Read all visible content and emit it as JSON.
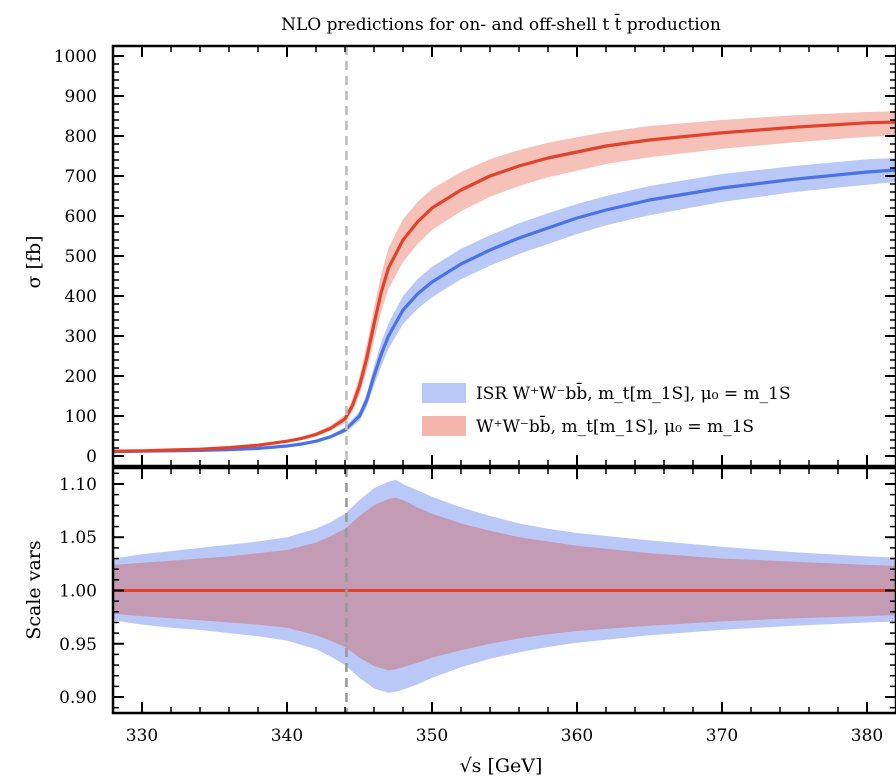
{
  "title": "NLO predictions for on- and off-shell t t̄ production",
  "xlabel": "√s [GeV]",
  "colors": {
    "isr": "#4a72e8",
    "isr_band": "#b9c8f7",
    "ww": "#e2412a",
    "ww_band": "#f4b6ab",
    "overlap": "#c39bb5",
    "threshold": "#bdbdbd"
  },
  "chart_data": [
    {
      "type": "area",
      "panel": "top",
      "ylabel": "σ [fb]",
      "xlim": [
        328,
        382
      ],
      "ylim": [
        -25,
        1025
      ],
      "xticks": [
        330,
        340,
        350,
        360,
        370,
        380
      ],
      "xtick_labels": [
        "330",
        "340",
        "350",
        "360",
        "370",
        "380"
      ],
      "yticks": [
        0,
        100,
        200,
        300,
        400,
        500,
        600,
        700,
        800,
        900,
        1000
      ],
      "ytick_labels": [
        "0",
        "100",
        "200",
        "300",
        "400",
        "500",
        "600",
        "700",
        "800",
        "900",
        "1000"
      ],
      "grid": false,
      "threshold_x": 344.1,
      "legend_position": "lower-right",
      "series": [
        {
          "name": "ISR W⁺W⁻bb̄, m_t[m_1S], μ₀ = m_1S",
          "x": [
            328,
            330,
            332,
            334,
            336,
            338,
            340,
            341,
            342,
            343,
            344,
            345,
            345.5,
            346,
            346.5,
            347,
            348,
            349,
            350,
            352,
            354,
            356,
            358,
            360,
            362,
            365,
            370,
            375,
            380,
            382
          ],
          "y": [
            11,
            12,
            13,
            14,
            16,
            19,
            25,
            30,
            37,
            48,
            65,
            100,
            140,
            200,
            255,
            300,
            365,
            405,
            435,
            480,
            515,
            545,
            570,
            595,
            615,
            640,
            670,
            692,
            710,
            715
          ],
          "band_low": [
            10,
            11,
            12,
            13,
            15,
            18,
            23,
            28,
            34,
            44,
            58,
            88,
            123,
            176,
            225,
            268,
            330,
            368,
            397,
            442,
            476,
            505,
            530,
            555,
            577,
            602,
            635,
            660,
            678,
            685
          ],
          "band_high": [
            12,
            13,
            14,
            15,
            17,
            20,
            27,
            32,
            40,
            52,
            72,
            112,
            157,
            224,
            285,
            332,
            400,
            442,
            473,
            518,
            552,
            582,
            607,
            630,
            650,
            675,
            705,
            725,
            742,
            745
          ]
        },
        {
          "name": "W⁺W⁻bb̄, m_t[m_1S], μ₀ = m_1S",
          "x": [
            328,
            330,
            332,
            334,
            336,
            338,
            340,
            341,
            342,
            343,
            344,
            344.5,
            345,
            345.5,
            346,
            346.5,
            347,
            348,
            349,
            350,
            352,
            354,
            356,
            358,
            360,
            362,
            365,
            370,
            375,
            380,
            382
          ],
          "y": [
            12,
            13,
            15,
            17,
            21,
            27,
            37,
            44,
            54,
            69,
            93,
            125,
            175,
            245,
            330,
            410,
            470,
            540,
            585,
            620,
            665,
            700,
            725,
            745,
            760,
            775,
            790,
            808,
            822,
            833,
            835
          ],
          "band_low": [
            11,
            12,
            14,
            16,
            20,
            25,
            34,
            40,
            49,
            63,
            83,
            110,
            153,
            214,
            290,
            362,
            418,
            485,
            530,
            565,
            612,
            648,
            675,
            697,
            713,
            730,
            747,
            768,
            784,
            798,
            800
          ],
          "band_high": [
            13,
            14,
            16,
            18,
            22,
            29,
            40,
            48,
            59,
            76,
            103,
            142,
            199,
            278,
            370,
            455,
            520,
            592,
            635,
            668,
            710,
            742,
            765,
            783,
            797,
            810,
            825,
            840,
            852,
            860,
            862
          ]
        }
      ]
    },
    {
      "type": "area",
      "panel": "bottom",
      "ylabel": "Scale vars",
      "xlim": [
        328,
        382
      ],
      "ylim": [
        0.885,
        1.115
      ],
      "yticks": [
        0.9,
        0.95,
        1.0,
        1.05,
        1.1
      ],
      "ytick_labels": [
        "0.90",
        "0.95",
        "1.00",
        "1.05",
        "1.10"
      ],
      "grid": false,
      "threshold_x": 344.1,
      "series": [
        {
          "name": "ISR W⁺W⁻bb̄, m_t[m_1S], μ₀ = m_1S",
          "x": [
            328,
            330,
            332,
            334,
            336,
            338,
            340,
            342,
            343,
            344,
            345,
            346,
            347,
            347.5,
            348,
            349,
            350,
            352,
            354,
            356,
            358,
            360,
            365,
            370,
            375,
            380,
            382
          ],
          "y": [
            1,
            1,
            1,
            1,
            1,
            1,
            1,
            1,
            1,
            1,
            1,
            1,
            1,
            1,
            1,
            1,
            1,
            1,
            1,
            1,
            1,
            1,
            1,
            1,
            1,
            1,
            1
          ],
          "band_low": [
            0.972,
            0.968,
            0.965,
            0.963,
            0.96,
            0.957,
            0.953,
            0.945,
            0.938,
            0.93,
            0.918,
            0.908,
            0.904,
            0.905,
            0.907,
            0.912,
            0.918,
            0.928,
            0.936,
            0.942,
            0.947,
            0.951,
            0.958,
            0.963,
            0.967,
            0.97,
            0.971
          ],
          "band_high": [
            1.03,
            1.034,
            1.037,
            1.04,
            1.043,
            1.046,
            1.05,
            1.058,
            1.064,
            1.072,
            1.085,
            1.096,
            1.102,
            1.104,
            1.1,
            1.094,
            1.088,
            1.078,
            1.07,
            1.063,
            1.058,
            1.054,
            1.047,
            1.041,
            1.036,
            1.032,
            1.031
          ]
        },
        {
          "name": "W⁺W⁻bb̄, m_t[m_1S], μ₀ = m_1S",
          "x": [
            328,
            330,
            332,
            334,
            336,
            338,
            340,
            342,
            343,
            344,
            345,
            346,
            347,
            347.5,
            348,
            349,
            350,
            352,
            354,
            356,
            358,
            360,
            365,
            370,
            375,
            380,
            382
          ],
          "y": [
            1,
            1,
            1,
            1,
            1,
            1,
            1,
            1,
            1,
            1,
            1,
            1,
            1,
            1,
            1,
            1,
            1,
            1,
            1,
            1,
            1,
            1,
            1,
            1,
            1,
            1,
            1
          ],
          "band_low": [
            0.978,
            0.976,
            0.974,
            0.972,
            0.97,
            0.968,
            0.965,
            0.958,
            0.953,
            0.947,
            0.937,
            0.929,
            0.925,
            0.926,
            0.928,
            0.932,
            0.937,
            0.944,
            0.95,
            0.955,
            0.959,
            0.962,
            0.967,
            0.971,
            0.974,
            0.976,
            0.977
          ],
          "band_high": [
            1.024,
            1.026,
            1.028,
            1.03,
            1.032,
            1.035,
            1.038,
            1.045,
            1.051,
            1.058,
            1.07,
            1.08,
            1.086,
            1.087,
            1.085,
            1.078,
            1.072,
            1.063,
            1.056,
            1.05,
            1.046,
            1.042,
            1.035,
            1.03,
            1.027,
            1.024,
            1.023
          ]
        }
      ]
    }
  ]
}
